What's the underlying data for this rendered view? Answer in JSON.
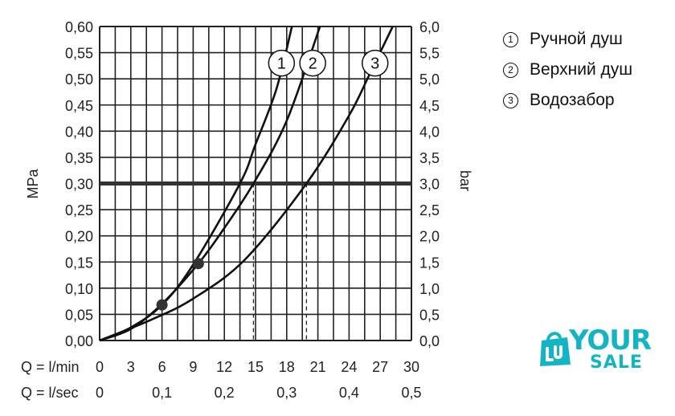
{
  "chart_data": {
    "type": "line",
    "left_axis": {
      "label": "MPa",
      "range": [
        0,
        0.6
      ],
      "ticks": [
        "0,00",
        "0,05",
        "0,10",
        "0,15",
        "0,20",
        "0,25",
        "0,30",
        "0,35",
        "0,40",
        "0,45",
        "0,50",
        "0,55",
        "0,60"
      ]
    },
    "right_axis": {
      "label": "bar",
      "range": [
        0,
        6.0
      ],
      "ticks": [
        "0,0",
        "0,5",
        "1,0",
        "1,5",
        "2,0",
        "2,5",
        "3,0",
        "3,5",
        "4,0",
        "4,5",
        "5,0",
        "5,5",
        "6,0"
      ]
    },
    "x_axis_lmin": {
      "label": "Q = l/min",
      "range": [
        0,
        30
      ],
      "ticks": [
        "0",
        "3",
        "6",
        "9",
        "12",
        "15",
        "18",
        "21",
        "24",
        "27",
        "30"
      ]
    },
    "x_axis_lsec": {
      "label": "Q = l/sec",
      "ticks": [
        "0",
        "0,1",
        "0,2",
        "0,3",
        "0,4",
        "0,5"
      ]
    },
    "grid": true,
    "reference_line": {
      "y": 0.3
    },
    "series": [
      {
        "name": "1",
        "points": [
          [
            0,
            0
          ],
          [
            3,
            0.025
          ],
          [
            6,
            0.068
          ],
          [
            9,
            0.145
          ],
          [
            13.5,
            0.3
          ],
          [
            15,
            0.375
          ],
          [
            17,
            0.48
          ],
          [
            18.5,
            0.6
          ]
        ]
      },
      {
        "name": "2",
        "points": [
          [
            0,
            0
          ],
          [
            3,
            0.022
          ],
          [
            6,
            0.07
          ],
          [
            9.5,
            0.147
          ],
          [
            12,
            0.215
          ],
          [
            14.8,
            0.3
          ],
          [
            18,
            0.42
          ],
          [
            21.2,
            0.6
          ]
        ]
      },
      {
        "name": "3",
        "points": [
          [
            0,
            0
          ],
          [
            5,
            0.04
          ],
          [
            9,
            0.08
          ],
          [
            14,
            0.155
          ],
          [
            19.9,
            0.3
          ],
          [
            24,
            0.43
          ],
          [
            26,
            0.51
          ],
          [
            28.2,
            0.6
          ]
        ]
      }
    ],
    "markers": [
      {
        "x": 6,
        "y": 0.068
      },
      {
        "x": 9.5,
        "y": 0.147
      }
    ],
    "drop_lines_x": [
      13.5,
      14.8,
      19.9
    ],
    "curve_label_positions": [
      {
        "num": "1",
        "x": 17.5,
        "y": 0.53
      },
      {
        "num": "2",
        "x": 20.5,
        "y": 0.53
      },
      {
        "num": "3",
        "x": 26.5,
        "y": 0.53
      }
    ]
  },
  "legend": {
    "items": [
      {
        "num": "1",
        "text": "Ручной душ"
      },
      {
        "num": "2",
        "text": "Верхний душ"
      },
      {
        "num": "3",
        "text": "Водозабор"
      }
    ]
  },
  "logo": {
    "line1": "YOUR",
    "line2": "SALE",
    "color": "#14b5c3"
  }
}
